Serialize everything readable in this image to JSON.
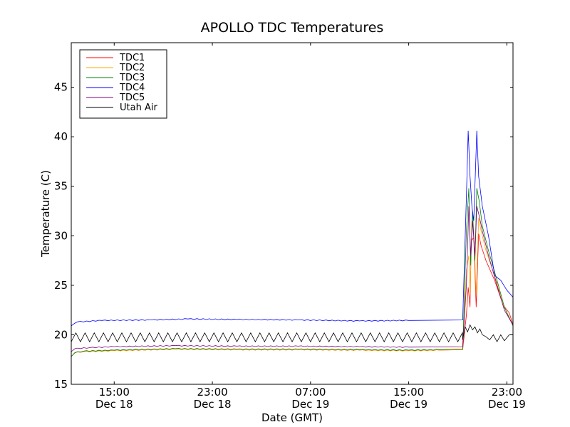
{
  "chart_data": {
    "type": "line",
    "title": "APOLLO TDC Temperatures",
    "xlabel": "Date (GMT)",
    "ylabel": "Temperature (C)",
    "ylim": [
      15,
      49.5
    ],
    "xlim_hours": [
      11.5,
      47.5
    ],
    "yticks": [
      15,
      20,
      25,
      30,
      35,
      40,
      45
    ],
    "xticks": [
      {
        "hour": 15,
        "time": "15:00",
        "date": "Dec 18"
      },
      {
        "hour": 23,
        "time": "23:00",
        "date": "Dec 18"
      },
      {
        "hour": 31,
        "time": "07:00",
        "date": "Dec 19"
      },
      {
        "hour": 39,
        "time": "15:00",
        "date": "Dec 19"
      },
      {
        "hour": 47,
        "time": "23:00",
        "date": "Dec 19"
      }
    ],
    "legend_position": "top-left",
    "series": [
      {
        "name": "TDC1",
        "color": "#ff0000",
        "points": [
          [
            11.5,
            17.8
          ],
          [
            11.8,
            18.2
          ],
          [
            12.5,
            18.3
          ],
          [
            15,
            18.4
          ],
          [
            20,
            18.55
          ],
          [
            25,
            18.5
          ],
          [
            30,
            18.5
          ],
          [
            35,
            18.45
          ],
          [
            39,
            18.4
          ],
          [
            41.5,
            18.45
          ],
          [
            43.4,
            18.5
          ],
          [
            43.7,
            22
          ],
          [
            43.85,
            24.8
          ],
          [
            44.0,
            22.8
          ],
          [
            44.1,
            29.5
          ],
          [
            44.3,
            29.8
          ],
          [
            44.5,
            22.8
          ],
          [
            44.7,
            30.2
          ],
          [
            44.9,
            29
          ],
          [
            45.3,
            27.5
          ],
          [
            46.0,
            25.5
          ],
          [
            46.7,
            23.0
          ],
          [
            47.2,
            22.2
          ],
          [
            47.5,
            21.0
          ]
        ]
      },
      {
        "name": "TDC2",
        "color": "#ffa500",
        "points": [
          [
            11.5,
            17.8
          ],
          [
            11.8,
            18.2
          ],
          [
            12.5,
            18.3
          ],
          [
            15,
            18.4
          ],
          [
            20,
            18.55
          ],
          [
            25,
            18.5
          ],
          [
            30,
            18.5
          ],
          [
            35,
            18.45
          ],
          [
            39,
            18.4
          ],
          [
            41.5,
            18.45
          ],
          [
            43.4,
            18.5
          ],
          [
            43.7,
            26.5
          ],
          [
            43.9,
            28
          ],
          [
            44.0,
            24
          ],
          [
            44.15,
            31.5
          ],
          [
            44.3,
            30.5
          ],
          [
            44.5,
            24
          ],
          [
            44.7,
            31.8
          ],
          [
            44.9,
            30.5
          ],
          [
            45.3,
            28.5
          ],
          [
            46.0,
            26
          ],
          [
            46.7,
            23
          ],
          [
            47.5,
            21.0
          ]
        ]
      },
      {
        "name": "TDC3",
        "color": "#008000",
        "points": [
          [
            11.5,
            17.8
          ],
          [
            11.8,
            18.2
          ],
          [
            12.5,
            18.35
          ],
          [
            15,
            18.45
          ],
          [
            20,
            18.6
          ],
          [
            25,
            18.55
          ],
          [
            30,
            18.55
          ],
          [
            35,
            18.5
          ],
          [
            39,
            18.45
          ],
          [
            41.5,
            18.5
          ],
          [
            43.4,
            18.55
          ],
          [
            43.7,
            30.5
          ],
          [
            43.9,
            34.8
          ],
          [
            44.05,
            27
          ],
          [
            44.2,
            32.5
          ],
          [
            44.4,
            27.5
          ],
          [
            44.55,
            34.8
          ],
          [
            44.75,
            33.5
          ],
          [
            45.0,
            31
          ],
          [
            45.5,
            28.5
          ],
          [
            46.2,
            25.5
          ],
          [
            46.8,
            22.8
          ],
          [
            47.5,
            20.9
          ]
        ]
      },
      {
        "name": "TDC4",
        "color": "#0000ff",
        "points": [
          [
            11.5,
            20.9
          ],
          [
            12.0,
            21.3
          ],
          [
            14,
            21.45
          ],
          [
            18,
            21.5
          ],
          [
            21,
            21.6
          ],
          [
            25,
            21.55
          ],
          [
            30,
            21.5
          ],
          [
            35,
            21.4
          ],
          [
            39,
            21.45
          ],
          [
            43.4,
            21.5
          ],
          [
            43.7,
            34
          ],
          [
            43.85,
            40.6
          ],
          [
            44.0,
            36
          ],
          [
            44.15,
            33
          ],
          [
            44.3,
            31.5
          ],
          [
            44.45,
            37
          ],
          [
            44.55,
            40.6
          ],
          [
            44.7,
            36
          ],
          [
            45.0,
            33
          ],
          [
            45.5,
            30
          ],
          [
            46.0,
            26
          ],
          [
            46.5,
            25.5
          ],
          [
            47.0,
            24.5
          ],
          [
            47.5,
            23.8
          ]
        ]
      },
      {
        "name": "TDC5",
        "color": "#800080",
        "points": [
          [
            11.5,
            18.3
          ],
          [
            11.8,
            18.6
          ],
          [
            13,
            18.7
          ],
          [
            15,
            18.8
          ],
          [
            20,
            18.9
          ],
          [
            25,
            18.85
          ],
          [
            30,
            18.85
          ],
          [
            35,
            18.8
          ],
          [
            39,
            18.75
          ],
          [
            43.4,
            18.8
          ],
          [
            43.7,
            25
          ],
          [
            43.9,
            33
          ],
          [
            44.05,
            28
          ],
          [
            44.2,
            31.5
          ],
          [
            44.4,
            28
          ],
          [
            44.55,
            33
          ],
          [
            44.75,
            32
          ],
          [
            45.0,
            30.5
          ],
          [
            45.5,
            28
          ],
          [
            46.2,
            25
          ],
          [
            46.8,
            22.5
          ],
          [
            47.5,
            21.0
          ]
        ]
      },
      {
        "name": "Utah Air",
        "color": "#000000",
        "sawtooth": {
          "start": 11.5,
          "end": 43.4,
          "period": 0.75,
          "low": 19.3,
          "high": 20.2
        },
        "points": [
          [
            43.4,
            19.5
          ],
          [
            43.6,
            20.8
          ],
          [
            43.8,
            20.3
          ],
          [
            44.0,
            21.0
          ],
          [
            44.2,
            20.5
          ],
          [
            44.4,
            20.8
          ],
          [
            44.6,
            20.2
          ],
          [
            44.8,
            20.6
          ],
          [
            45.0,
            20.0
          ],
          [
            45.3,
            19.8
          ],
          [
            45.6,
            19.5
          ],
          [
            45.9,
            20.0
          ],
          [
            46.2,
            19.3
          ],
          [
            46.5,
            20.0
          ],
          [
            46.8,
            19.4
          ],
          [
            47.2,
            20.0
          ],
          [
            47.5,
            20.0
          ]
        ]
      }
    ]
  }
}
